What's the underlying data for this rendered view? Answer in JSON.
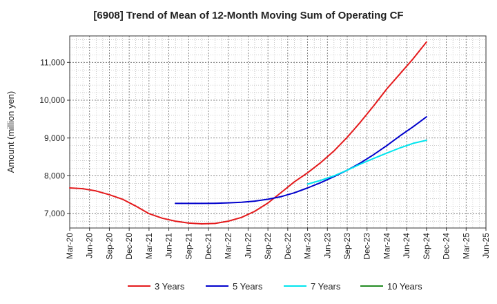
{
  "chart_data": {
    "type": "line",
    "title": "[6908]  Trend of Mean of 12-Month Moving Sum of Operating CF",
    "xlabel": "",
    "ylabel": "Amount (million yen)",
    "ylim": [
      6620,
      11700
    ],
    "yticks": [
      7000,
      8000,
      9000,
      10000,
      11000
    ],
    "ytick_labels": [
      "7,000",
      "8,000",
      "9,000",
      "10,000",
      "11,000"
    ],
    "xticks": [
      "Mar-20",
      "Jun-20",
      "Sep-20",
      "Dec-20",
      "Mar-21",
      "Jun-21",
      "Sep-21",
      "Dec-21",
      "Mar-22",
      "Jun-22",
      "Sep-22",
      "Dec-22",
      "Mar-23",
      "Jun-23",
      "Sep-23",
      "Dec-23",
      "Mar-24",
      "Jun-24",
      "Sep-24",
      "Dec-24",
      "Mar-25",
      "Jun-25"
    ],
    "grid": true,
    "legend_position": "bottom",
    "series": [
      {
        "name": "3 Years",
        "color": "#e41a1c",
        "x": [
          0,
          2,
          4,
          6,
          8,
          10,
          12,
          14,
          16,
          18,
          20,
          22,
          24,
          26,
          28,
          30,
          32,
          34,
          36,
          38,
          40,
          42,
          44,
          46,
          48,
          50,
          52,
          54,
          56,
          58,
          60
        ],
        "y": [
          7680,
          7660,
          7600,
          7500,
          7380,
          7200,
          7000,
          6880,
          6800,
          6750,
          6730,
          6740,
          6800,
          6900,
          7060,
          7280,
          7560,
          7840,
          8080,
          8350,
          8660,
          9020,
          9420,
          9850,
          10300,
          10700,
          11100,
          11540,
          null,
          null,
          null
        ]
      },
      {
        "name": "5 Years",
        "color": "#0000cc",
        "x": [
          16,
          18,
          20,
          22,
          24,
          26,
          28,
          30,
          32,
          34,
          36,
          38,
          40,
          42,
          44,
          46,
          48,
          50,
          52,
          54,
          56,
          58,
          60
        ],
        "y": [
          7270,
          7270,
          7270,
          7275,
          7285,
          7300,
          7330,
          7380,
          7450,
          7550,
          7680,
          7820,
          7980,
          8150,
          8340,
          8560,
          8800,
          9060,
          9300,
          9560,
          null,
          null,
          null
        ]
      },
      {
        "name": "7 Years",
        "color": "#00e5ee",
        "x": [
          36,
          38,
          40,
          42,
          44,
          46,
          48,
          50,
          52,
          54
        ],
        "y": [
          7780,
          7880,
          8000,
          8150,
          8310,
          8460,
          8600,
          8740,
          8860,
          8940
        ]
      },
      {
        "name": "10 Years",
        "color": "#228b22",
        "x": [],
        "y": []
      }
    ]
  }
}
